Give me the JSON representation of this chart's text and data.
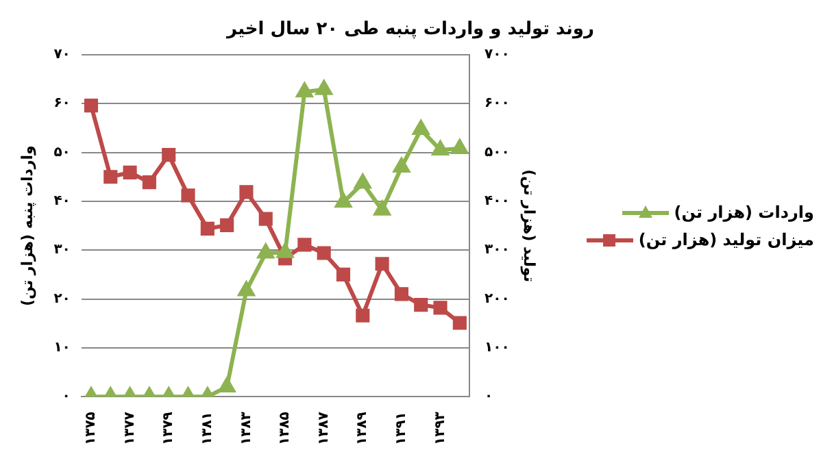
{
  "chart_data": {
    "type": "line",
    "title": "روند تولید و واردات پنبه طی ۲۰ سال اخیر",
    "ylabel": "واردات پنبه (هزار تن)",
    "y2label": "تولید (هزار تن)",
    "categories": [
      "۱۳۷۵",
      null,
      "۱۳۷۷",
      null,
      "۱۳۷۹",
      null,
      "۱۳۸۱",
      null,
      "۱۳۸۳",
      null,
      "۱۳۸۵",
      null,
      "۱۳۸۷",
      null,
      "۱۳۸۹",
      null,
      "۱۳۹۱",
      null,
      "۱۳۹۳",
      null
    ],
    "series": [
      {
        "name": "واردات  (هزار تن)",
        "color": "#8db350",
        "marker": "triangle",
        "axis": "y",
        "values": [
          0,
          0,
          0,
          0,
          0,
          0,
          0,
          2,
          21.7,
          29.4,
          29.5,
          62.4,
          62.9,
          39.8,
          43.7,
          38.2,
          47,
          54.7,
          50.5,
          50.8
        ]
      },
      {
        "name": "میزان تولید (هزار تن)",
        "color": "#bd4a48",
        "marker": "square",
        "axis": "y2",
        "values": [
          596,
          450,
          459,
          439,
          495,
          412,
          344,
          351,
          419,
          364,
          283,
          311,
          294,
          250,
          166,
          272,
          210,
          188,
          182,
          151
        ]
      }
    ],
    "ylim": [
      0,
      70
    ],
    "yticks": [
      {
        "value": 0,
        "label": "۰"
      },
      {
        "value": 10,
        "label": "۱۰"
      },
      {
        "value": 20,
        "label": "۲۰"
      },
      {
        "value": 30,
        "label": "۳۰"
      },
      {
        "value": 40,
        "label": "۴۰"
      },
      {
        "value": 50,
        "label": "۵۰"
      },
      {
        "value": 60,
        "label": "۶۰"
      },
      {
        "value": 70,
        "label": "۷۰"
      }
    ],
    "y2lim": [
      0,
      700
    ],
    "y2ticks": [
      {
        "value": 0,
        "label": "۰"
      },
      {
        "value": 100,
        "label": "۱۰۰"
      },
      {
        "value": 200,
        "label": "۲۰۰"
      },
      {
        "value": 300,
        "label": "۳۰۰"
      },
      {
        "value": 400,
        "label": "۴۰۰"
      },
      {
        "value": 500,
        "label": "۵۰۰"
      },
      {
        "value": 600,
        "label": "۶۰۰"
      },
      {
        "value": 700,
        "label": "۷۰۰"
      }
    ],
    "grid": "y",
    "legend": "right",
    "line_style": "solid"
  }
}
